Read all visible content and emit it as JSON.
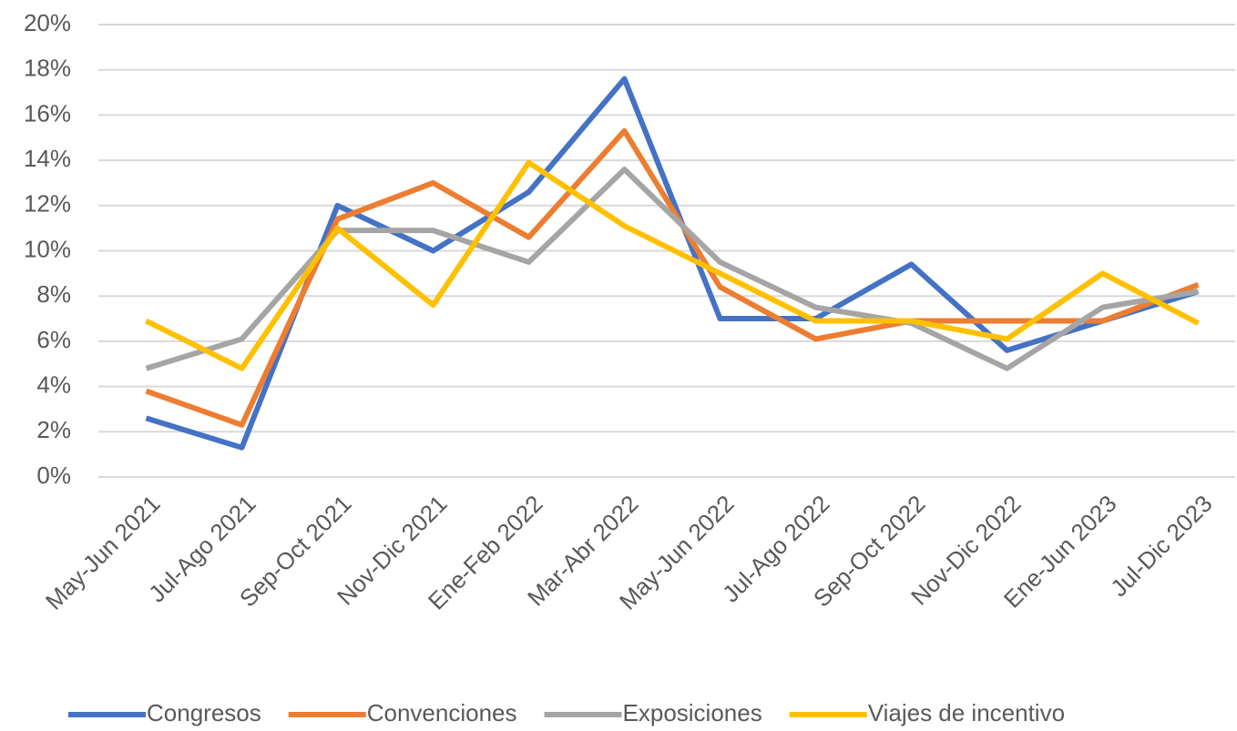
{
  "chart_data": {
    "type": "line",
    "categories": [
      "May-Jun 2021",
      "Jul-Ago 2021",
      "Sep-Oct 2021",
      "Nov-Dic 2021",
      "Ene-Feb 2022",
      "Mar-Abr 2022",
      "May-Jun 2022",
      "Jul-Ago 2022",
      "Sep-Oct 2022",
      "Nov-Dic 2022",
      "Ene-Jun 2023",
      "Jul-Dic 2023"
    ],
    "series": [
      {
        "name": "Congresos",
        "color": "#4472c4",
        "values": [
          2.6,
          1.3,
          12.0,
          10.0,
          12.6,
          17.6,
          7.0,
          7.0,
          9.4,
          5.6,
          6.9,
          8.2
        ]
      },
      {
        "name": "Convenciones",
        "color": "#ed7d31",
        "values": [
          3.8,
          2.3,
          11.4,
          13.0,
          10.6,
          15.3,
          8.4,
          6.1,
          6.9,
          6.9,
          6.9,
          8.5
        ]
      },
      {
        "name": "Exposiciones",
        "color": "#a5a5a5",
        "values": [
          4.8,
          6.1,
          10.9,
          10.9,
          9.5,
          13.6,
          9.5,
          7.5,
          6.8,
          4.8,
          7.5,
          8.2
        ]
      },
      {
        "name": "Viajes de incentivo",
        "color": "#ffc000",
        "values": [
          6.9,
          4.8,
          11.0,
          7.6,
          13.9,
          11.1,
          9.0,
          6.9,
          6.9,
          6.1,
          9.0,
          6.8
        ]
      }
    ],
    "ylim": [
      0,
      20
    ],
    "yticks": [
      {
        "value": 0,
        "label": "0%"
      },
      {
        "value": 2,
        "label": "2%"
      },
      {
        "value": 4,
        "label": "4%"
      },
      {
        "value": 6,
        "label": "6%"
      },
      {
        "value": 8,
        "label": "8%"
      },
      {
        "value": 10,
        "label": "10%"
      },
      {
        "value": 12,
        "label": "12%"
      },
      {
        "value": 14,
        "label": "14%"
      },
      {
        "value": 16,
        "label": "16%"
      },
      {
        "value": 18,
        "label": "18%"
      },
      {
        "value": 20,
        "label": "20%"
      }
    ],
    "grid": true,
    "legend": "bottom"
  }
}
